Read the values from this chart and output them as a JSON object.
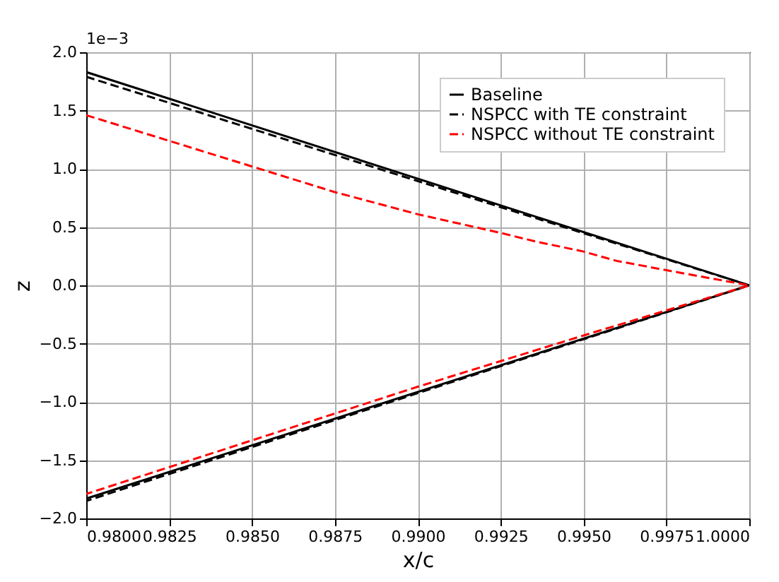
{
  "chart_data": {
    "type": "line",
    "xlabel": "x/c",
    "ylabel": "z",
    "annotations": [
      "1e−3"
    ],
    "xlim": [
      0.98,
      1.0
    ],
    "ylim": [
      -2.0,
      2.0
    ],
    "xticks": [
      {
        "value": 0.98,
        "label": "0.9800"
      },
      {
        "value": 0.9825,
        "label": "0.9825"
      },
      {
        "value": 0.985,
        "label": "0.9850"
      },
      {
        "value": 0.9875,
        "label": "0.9875"
      },
      {
        "value": 0.99,
        "label": "0.9900"
      },
      {
        "value": 0.9925,
        "label": "0.9925"
      },
      {
        "value": 0.995,
        "label": "0.9950"
      },
      {
        "value": 0.9975,
        "label": "0.9975"
      },
      {
        "value": 1.0,
        "label": "1.0000"
      }
    ],
    "yticks": [
      {
        "value": -2.0,
        "label": "−2.0"
      },
      {
        "value": -1.5,
        "label": "−1.5"
      },
      {
        "value": -1.0,
        "label": "−1.0"
      },
      {
        "value": -0.5,
        "label": "−0.5"
      },
      {
        "value": 0.0,
        "label": "0.0"
      },
      {
        "value": 0.5,
        "label": "0.5"
      },
      {
        "value": 1.0,
        "label": "1.0"
      },
      {
        "value": 1.5,
        "label": "1.5"
      },
      {
        "value": 2.0,
        "label": "2.0"
      }
    ],
    "grid": true,
    "legend": "top right",
    "series": [
      {
        "name": "Baseline",
        "color": "#000000",
        "line_style": "solid",
        "x": [
          0.98,
          1.0,
          0.98
        ],
        "values": [
          1.83,
          0.0,
          -1.83
        ]
      },
      {
        "name": "NSPCC with TE constraint",
        "color": "#000000",
        "line_style": "dashed",
        "x": [
          0.98,
          1.0,
          0.98
        ],
        "values": [
          1.79,
          0.0,
          -1.85
        ]
      },
      {
        "name": "NSPCC without TE constraint",
        "color": "#ff0000",
        "line_style": "dashed",
        "x": [
          0.98,
          0.9825,
          0.985,
          0.9875,
          0.99,
          0.9925,
          0.9935,
          0.995,
          0.996,
          0.9975,
          1.0,
          0.995,
          0.99,
          0.985,
          0.98
        ],
        "values": [
          1.46,
          1.24,
          1.02,
          0.8,
          0.61,
          0.45,
          0.38,
          0.29,
          0.21,
          0.13,
          0.0,
          -0.43,
          -0.87,
          -1.33,
          -1.79
        ]
      }
    ]
  }
}
